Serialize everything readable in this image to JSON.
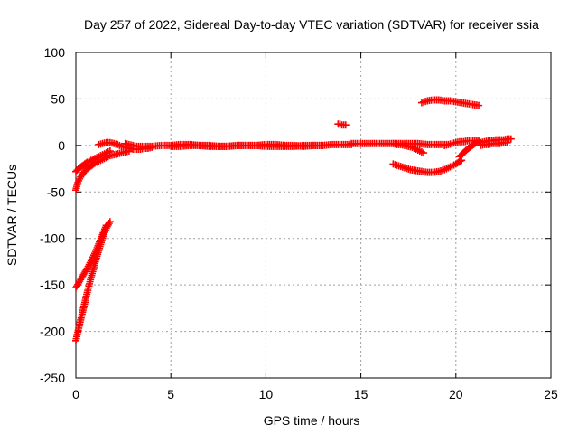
{
  "chart_data": {
    "type": "scatter",
    "title": "Day 257 of 2022, Sidereal Day-to-day VTEC variation (SDTVAR) for receiver ssia",
    "xlabel": "GPS time / hours",
    "ylabel": "SDTVAR / TECUs",
    "xlim": [
      0,
      25
    ],
    "ylim": [
      -250,
      100
    ],
    "xticks": [
      0,
      5,
      10,
      15,
      20,
      25
    ],
    "yticks": [
      -250,
      -200,
      -150,
      -100,
      -50,
      0,
      50,
      100
    ],
    "grid": true,
    "marker": "cross",
    "color": "#ff0000",
    "series": [
      {
        "x": [
          0.0,
          0.2,
          0.4,
          0.6,
          0.8,
          1.0,
          1.2,
          1.4,
          1.6,
          1.8
        ],
        "y": [
          -210,
          -192,
          -175,
          -158,
          -142,
          -127,
          -113,
          -100,
          -89,
          -82
        ]
      },
      {
        "x": [
          0.0,
          0.2,
          0.4,
          0.6,
          0.8,
          1.0,
          1.2,
          1.4,
          1.6
        ],
        "y": [
          -153,
          -146,
          -139,
          -132,
          -124,
          -116,
          -106,
          -96,
          -86
        ]
      },
      {
        "x": [
          0.0,
          0.1,
          0.25,
          0.4,
          0.6,
          0.8,
          1.0,
          1.2,
          1.4,
          1.6,
          1.8,
          2.0,
          2.2,
          2.4,
          2.6,
          2.8
        ],
        "y": [
          -48,
          -40,
          -34,
          -29,
          -25,
          -22,
          -19,
          -17,
          -15,
          -13,
          -11,
          -10,
          -9,
          -8,
          -7,
          -6
        ]
      },
      {
        "x": [
          0.0,
          0.2,
          0.4,
          0.6,
          0.8,
          1.0,
          1.2,
          1.4,
          1.6,
          1.8
        ],
        "y": [
          -28,
          -24,
          -21,
          -18,
          -16,
          -14,
          -12,
          -10,
          -8,
          -6
        ]
      },
      {
        "x": [
          1.2,
          1.4,
          1.6,
          1.8,
          2.0,
          2.2,
          2.4,
          2.6,
          2.8,
          3.0,
          3.2,
          3.4,
          3.6,
          3.8,
          4.0
        ],
        "y": [
          1,
          2,
          3,
          3,
          2,
          1,
          -1,
          -2,
          -3,
          -4,
          -4,
          -4,
          -3,
          -3,
          -2
        ]
      },
      {
        "x": [
          2.6,
          2.8,
          3.0,
          3.2,
          3.5,
          4.0,
          4.5,
          5.0,
          5.5,
          6.0,
          6.5,
          7.0,
          7.5,
          8.0,
          8.5,
          9.0,
          9.5,
          10.0,
          10.5,
          11.0,
          11.5,
          12.0,
          12.5,
          13.0,
          13.5,
          14.0,
          14.5
        ],
        "y": [
          2,
          1,
          0,
          -1,
          -1,
          -1,
          0,
          0,
          1,
          1,
          0,
          0,
          -1,
          -1,
          0,
          0,
          0,
          1,
          1,
          0,
          0,
          -1,
          0,
          0,
          1,
          1,
          1
        ]
      },
      {
        "x": [
          5.0,
          5.5,
          6.0,
          6.5,
          7.0,
          7.5,
          8.0,
          8.5,
          9.0,
          9.5,
          10.0,
          10.5,
          11.0,
          11.5,
          12.0,
          12.5,
          13.0
        ],
        "y": [
          -1,
          -1,
          0,
          0,
          -1,
          -1,
          -1,
          0,
          0,
          0,
          -1,
          -1,
          -1,
          -1,
          0,
          0,
          0
        ]
      },
      {
        "x": [
          13.8,
          13.9,
          14.0,
          14.1,
          14.2
        ],
        "y": [
          23,
          23,
          22,
          22,
          22
        ]
      },
      {
        "x": [
          14.5,
          15.0,
          15.5,
          16.0,
          16.5,
          17.0,
          17.5,
          18.0,
          18.5,
          19.0,
          19.5
        ],
        "y": [
          2,
          2,
          2,
          2,
          2,
          2,
          2,
          2,
          1,
          1,
          1
        ]
      },
      {
        "x": [
          16.7,
          16.9,
          17.1,
          17.3,
          17.5,
          17.7,
          17.9,
          18.1,
          18.3
        ],
        "y": [
          2,
          1,
          1,
          0,
          -1,
          -2,
          -4,
          -6,
          -8
        ]
      },
      {
        "x": [
          16.7,
          17.0,
          17.3,
          17.6,
          17.9,
          18.2,
          18.5,
          18.8,
          19.1,
          19.4,
          19.7,
          20.0,
          20.3
        ],
        "y": [
          -20,
          -22,
          -24,
          -26,
          -27,
          -28,
          -29,
          -29,
          -28,
          -26,
          -23,
          -20,
          -16
        ]
      },
      {
        "x": [
          18.2,
          18.5,
          18.8,
          19.1,
          19.4,
          19.7,
          20.0,
          20.3,
          20.6,
          20.9,
          21.2
        ],
        "y": [
          46,
          48,
          49,
          49,
          48,
          48,
          47,
          46,
          45,
          44,
          43
        ]
      },
      {
        "x": [
          19.4,
          19.6,
          19.8,
          20.0,
          20.2,
          20.4,
          20.6,
          20.8,
          21.0,
          21.2
        ],
        "y": [
          0,
          1,
          2,
          3,
          4,
          4,
          5,
          5,
          5,
          5
        ]
      },
      {
        "x": [
          20.2,
          20.4,
          20.6,
          20.8,
          21.0,
          21.2
        ],
        "y": [
          -12,
          -8,
          -4,
          -1,
          2,
          4
        ]
      },
      {
        "x": [
          21.3,
          21.5,
          21.7,
          21.9,
          22.1,
          22.3,
          22.5,
          22.7,
          22.9
        ],
        "y": [
          3,
          4,
          5,
          5,
          6,
          6,
          6,
          7,
          7
        ]
      },
      {
        "x": [
          21.3,
          21.5,
          21.7,
          21.9,
          22.1,
          22.3,
          22.5,
          22.7
        ],
        "y": [
          0,
          1,
          1,
          2,
          2,
          2,
          3,
          3
        ]
      }
    ]
  }
}
